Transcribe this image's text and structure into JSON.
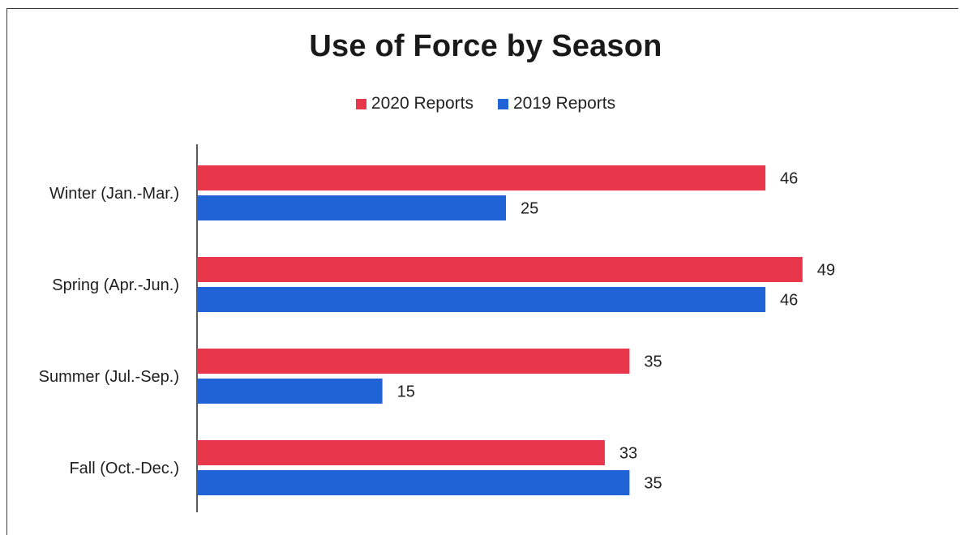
{
  "chart_data": {
    "type": "bar",
    "orientation": "horizontal",
    "title": "Use of Force by Season",
    "categories": [
      "Winter (Jan.-Mar.)",
      "Spring (Apr.-Jun.)",
      "Summer (Jul.-Sep.)",
      "Fall (Oct.-Dec.)"
    ],
    "series": [
      {
        "name": "2020 Reports",
        "color": "#e8364a",
        "values": [
          46,
          49,
          35,
          33
        ]
      },
      {
        "name": "2019 Reports",
        "color": "#1f63d6",
        "values": [
          25,
          46,
          15,
          35
        ]
      }
    ],
    "xlim": [
      0,
      50
    ],
    "grid": false,
    "legend_position": "top-center",
    "data_labels": true
  }
}
